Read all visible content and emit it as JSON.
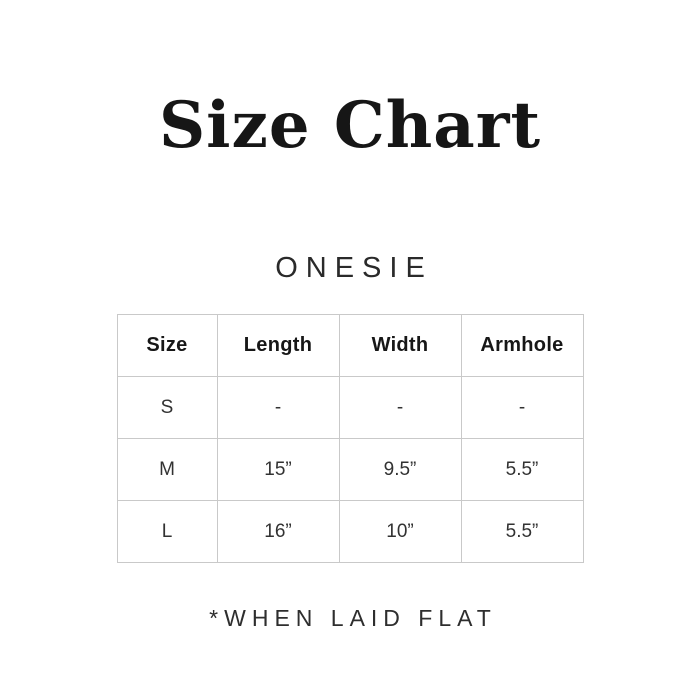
{
  "colors": {
    "background": "#ffffff",
    "text": "#1c1c1c",
    "table_border": "#c9c9c9"
  },
  "chart_data": {
    "type": "table",
    "title": "Size Chart",
    "subtitle": "ONESIE",
    "columns": [
      "Size",
      "Length",
      "Width",
      "Armhole"
    ],
    "rows": [
      [
        "S",
        "-",
        "-",
        "-"
      ],
      [
        "M",
        "15”",
        "9.5”",
        "5.5”"
      ],
      [
        "L",
        "16”",
        "10”",
        "5.5”"
      ]
    ],
    "footnote": "*WHEN LAID FLAT",
    "layout_hints": {
      "grid": "full-borders",
      "alignment": "center",
      "header_row": true
    }
  }
}
